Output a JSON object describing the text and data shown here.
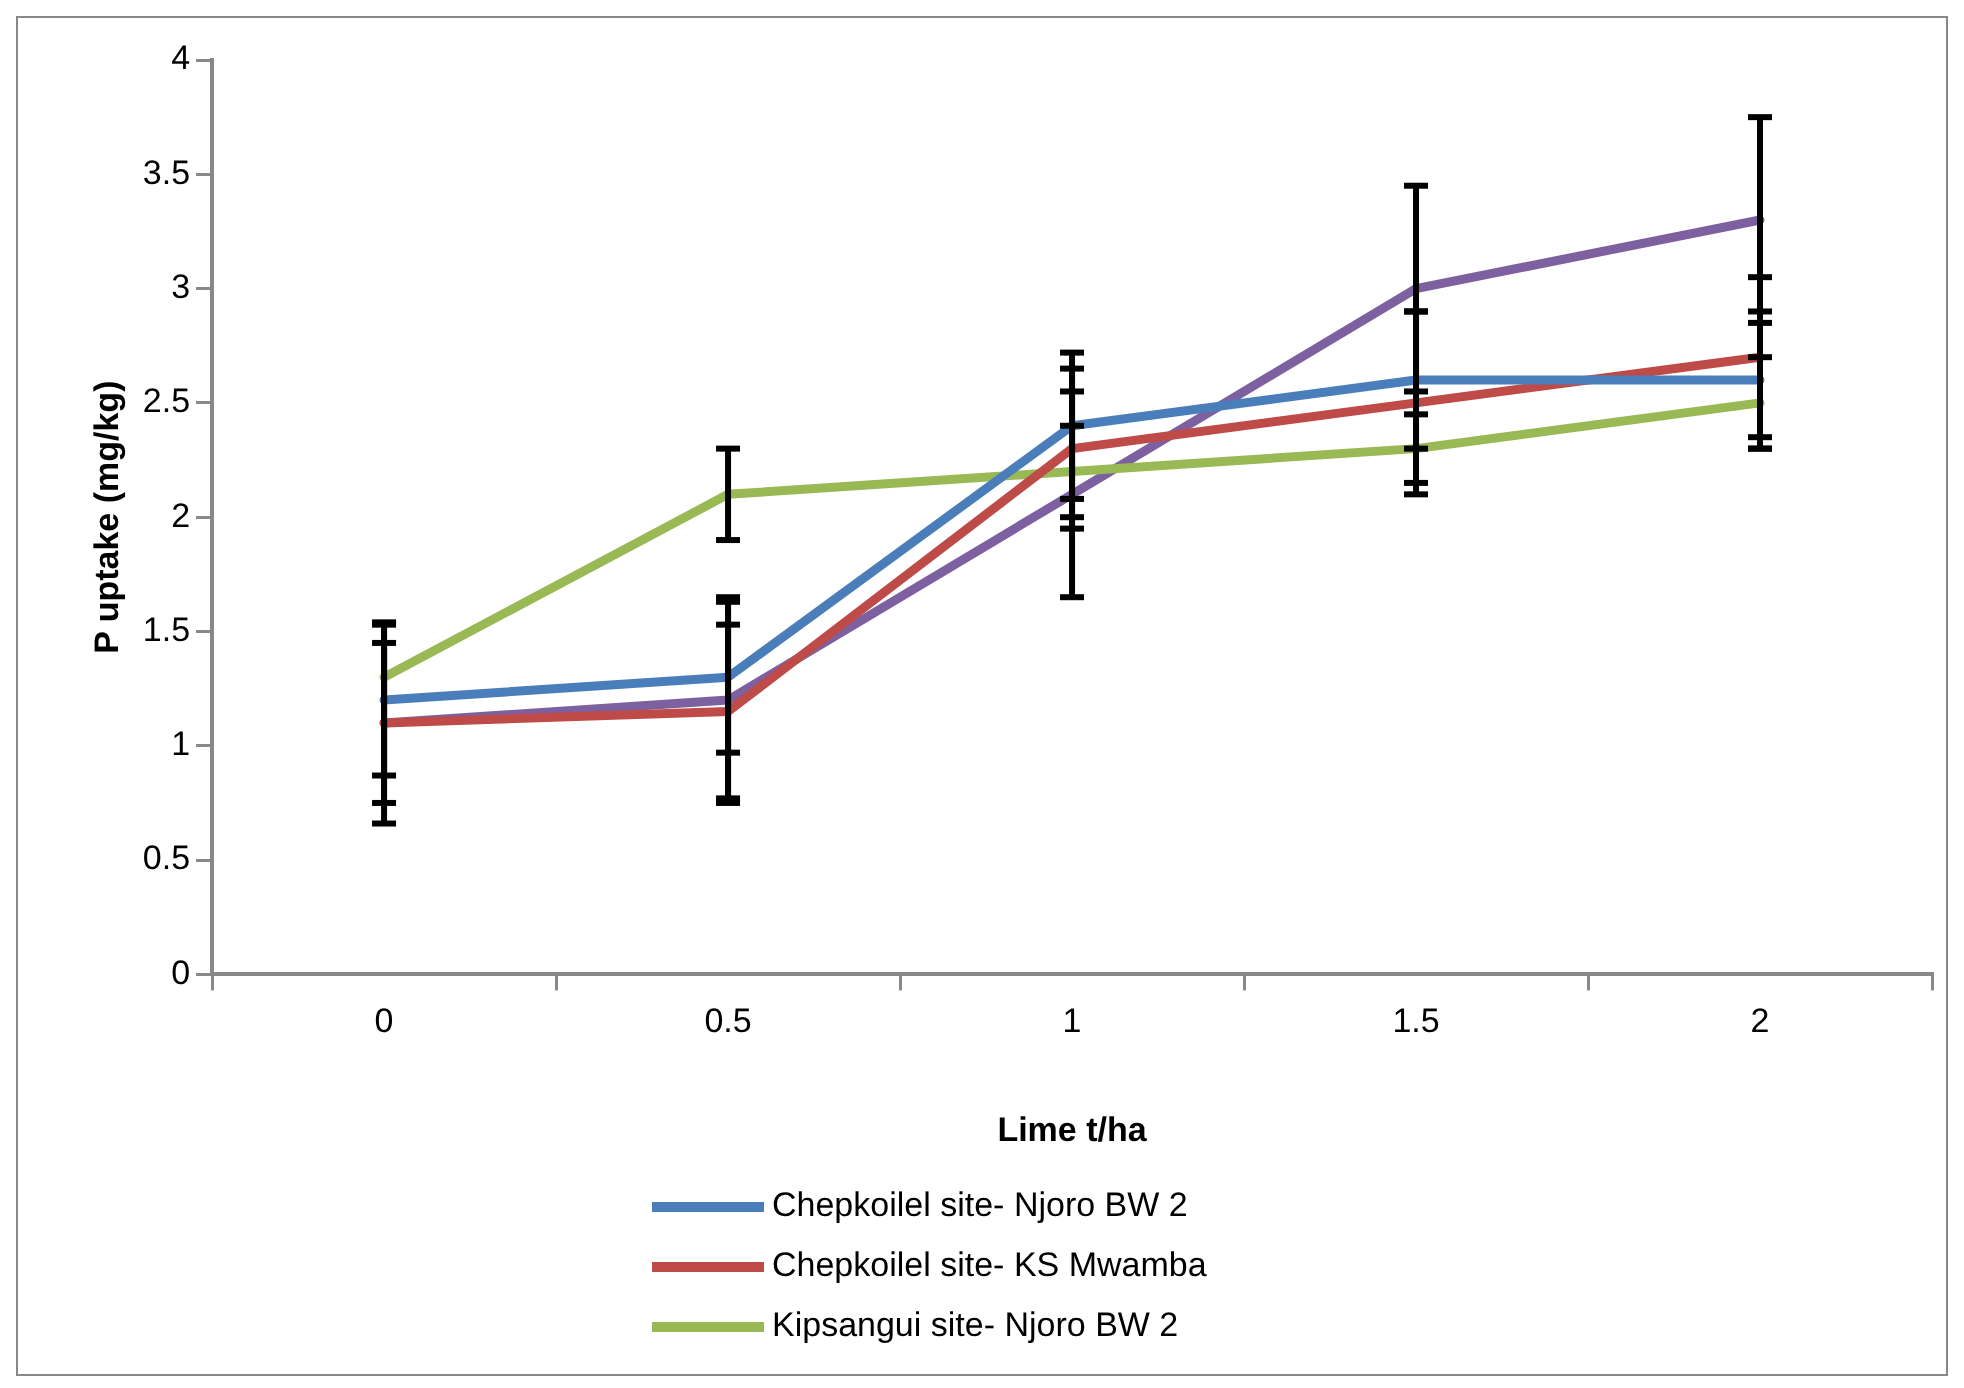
{
  "chart_data": {
    "type": "line",
    "xlabel": "Lime t/ha",
    "ylabel": "P uptake (mg/kg)",
    "categories": [
      "0",
      "0.5",
      "1",
      "1.5",
      "2"
    ],
    "ylim": [
      0,
      4
    ],
    "yticks": [
      0,
      0.5,
      1,
      1.5,
      2,
      2.5,
      3,
      3.5,
      4
    ],
    "grid": false,
    "legend": "bottom",
    "marker": "none",
    "line_style": "solid",
    "series": [
      {
        "name": "Chepkoilel site- Njoro BW 2",
        "color": "#4a7ebb",
        "values": [
          1.2,
          1.3,
          2.4,
          2.6,
          2.6
        ],
        "errors": [
          0.33,
          0.33,
          0.32,
          0.3,
          0.3
        ]
      },
      {
        "name": "Chepkoilel site- KS Mwamba",
        "color": "#be4b48",
        "values": [
          1.1,
          1.15,
          2.3,
          2.5,
          2.7
        ],
        "errors": [
          0.35,
          0.38,
          0.35,
          0.4,
          0.35
        ]
      },
      {
        "name": "Kipsangui site- Njoro BW 2",
        "color": "#98b954",
        "values": [
          1.3,
          2.1,
          2.2,
          2.3,
          2.5
        ],
        "errors": [
          null,
          0.2,
          0.2,
          0.15,
          0.2
        ]
      },
      {
        "color": "#7d60a0",
        "values": [
          1.1,
          1.2,
          2.1,
          3.0,
          3.3
        ],
        "errors": [
          0.44,
          0.45,
          0.45,
          0.45,
          0.45
        ]
      }
    ]
  }
}
